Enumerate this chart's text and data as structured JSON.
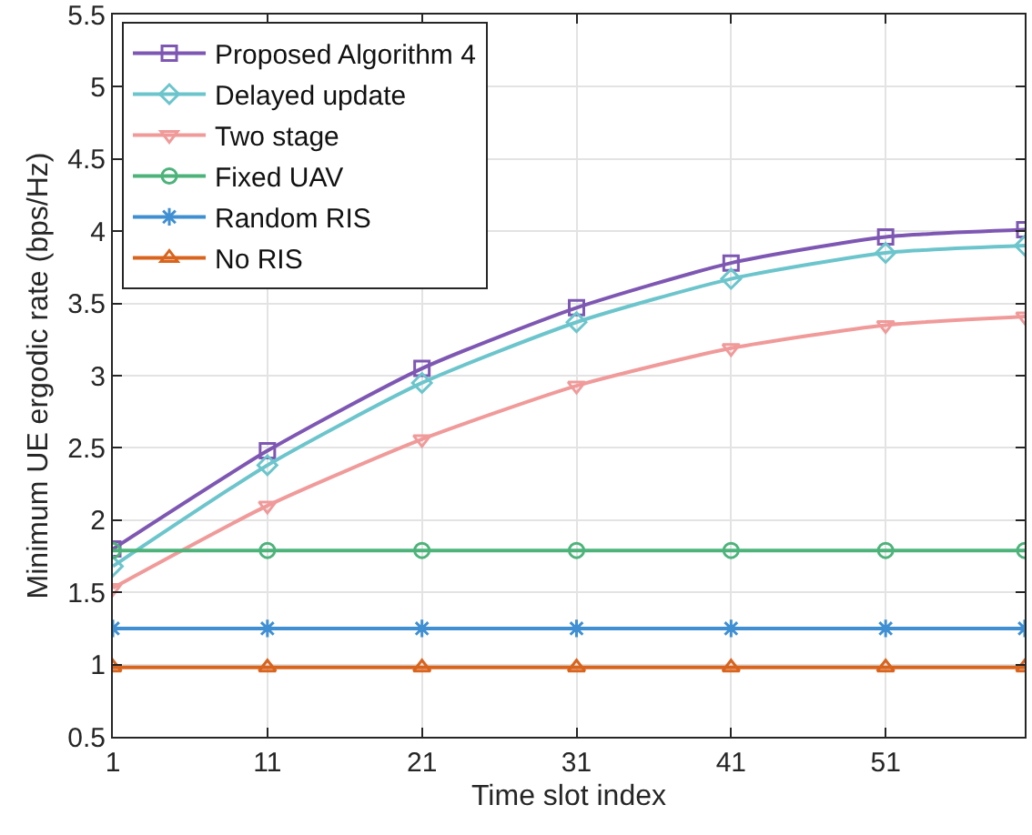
{
  "chart_data": {
    "type": "line",
    "xlabel": "Time slot index",
    "ylabel": "Minimum UE ergodic rate (bps/Hz)",
    "x": [
      1,
      11,
      21,
      31,
      41,
      51,
      60
    ],
    "series": [
      {
        "name": "Proposed Algorithm 4",
        "color": "#7e57b3",
        "marker": "square",
        "values": [
          1.8,
          2.48,
          3.05,
          3.47,
          3.78,
          3.96,
          4.01
        ]
      },
      {
        "name": "Delayed update",
        "color": "#6cc5cc",
        "marker": "diamond",
        "values": [
          1.68,
          2.38,
          2.95,
          3.37,
          3.67,
          3.85,
          3.9
        ]
      },
      {
        "name": "Two stage",
        "color": "#f09a9a",
        "marker": "triangle-down",
        "values": [
          1.53,
          2.1,
          2.56,
          2.93,
          3.19,
          3.35,
          3.41
        ]
      },
      {
        "name": "Fixed UAV",
        "color": "#4db37a",
        "marker": "circle",
        "values": [
          1.79,
          1.79,
          1.79,
          1.79,
          1.79,
          1.79,
          1.79
        ]
      },
      {
        "name": "Random RIS",
        "color": "#3f8fd2",
        "marker": "cross",
        "values": [
          1.25,
          1.25,
          1.25,
          1.25,
          1.25,
          1.25,
          1.25
        ]
      },
      {
        "name": "No RIS",
        "color": "#d9641e",
        "marker": "triangle",
        "values": [
          0.98,
          0.98,
          0.98,
          0.98,
          0.98,
          0.98,
          0.98
        ]
      }
    ],
    "xlim": [
      1,
      60
    ],
    "xticks": [
      1,
      11,
      21,
      31,
      41,
      51
    ],
    "ylim": [
      0.5,
      5.5
    ],
    "yticks": [
      0.5,
      1,
      1.5,
      2,
      2.5,
      3,
      3.5,
      4,
      4.5,
      5,
      5.5
    ],
    "grid": true,
    "legend": "top left",
    "line_style": "solid"
  }
}
